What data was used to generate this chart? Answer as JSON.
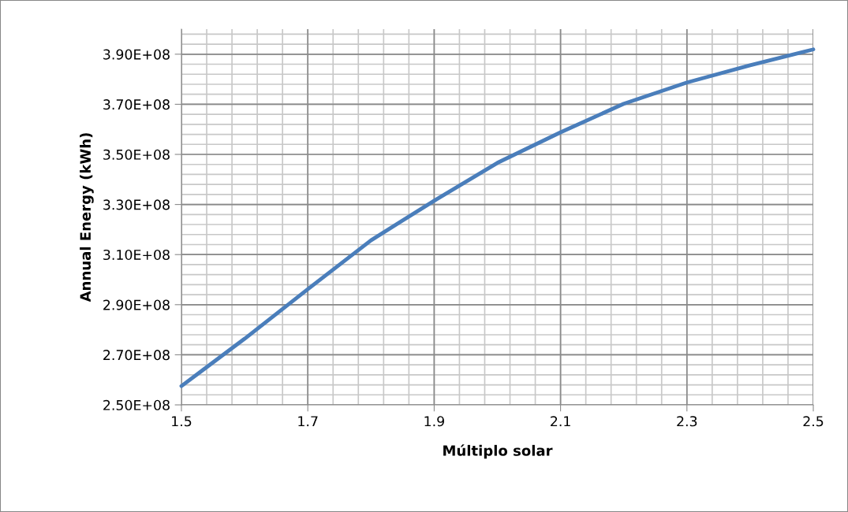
{
  "chart_data": {
    "type": "line",
    "xlabel": "Múltiplo solar",
    "ylabel": "Annual Energy (kWh)",
    "x": [
      1.5,
      1.6,
      1.7,
      1.8,
      1.9,
      2.0,
      2.1,
      2.2,
      2.3,
      2.4,
      2.5
    ],
    "series": [
      {
        "color": "#4a7ebb",
        "values": [
          257500000,
          276400000,
          296200000,
          315700000,
          331500000,
          346600000,
          358800000,
          370200000,
          378700000,
          385600000,
          391900000
        ]
      }
    ],
    "xlim": [
      1.5,
      2.5
    ],
    "xticks": [
      1.5,
      1.7,
      1.9,
      2.1,
      2.3,
      2.5
    ],
    "ylim": [
      250000000,
      400000000
    ],
    "yticks": [
      {
        "value": 250000000,
        "label": "2.50E+08"
      },
      {
        "value": 270000000,
        "label": "2.70E+08"
      },
      {
        "value": 290000000,
        "label": "2.90E+08"
      },
      {
        "value": 310000000,
        "label": "3.10E+08"
      },
      {
        "value": 330000000,
        "label": "3.30E+08"
      },
      {
        "value": 350000000,
        "label": "3.50E+08"
      },
      {
        "value": 370000000,
        "label": "3.70E+08"
      },
      {
        "value": 390000000,
        "label": "3.90E+08"
      }
    ],
    "grid": true,
    "legend": false,
    "marker": "none",
    "line_style": "solid"
  }
}
